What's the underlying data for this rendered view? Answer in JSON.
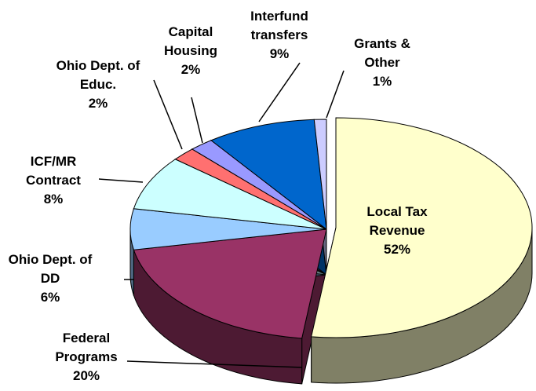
{
  "chart_data": {
    "type": "pie",
    "categories": [
      "Local Tax Revenue",
      "Federal Programs",
      "Ohio Dept. of DD",
      "ICF/MR Contract",
      "Ohio Dept. of Educ.",
      "Capital Housing",
      "Interfund transfers",
      "Grants & Other"
    ],
    "values": [
      52,
      20,
      6,
      8,
      2,
      2,
      9,
      1
    ],
    "value_labels": [
      "52%",
      "20%",
      "6%",
      "8%",
      "2%",
      "2%",
      "9%",
      "1%"
    ],
    "colors": [
      "#ffffcc",
      "#993366",
      "#99ccff",
      "#ccffff",
      "#ff7070",
      "#9999ff",
      "#0066cc",
      "#ccccff"
    ]
  }
}
